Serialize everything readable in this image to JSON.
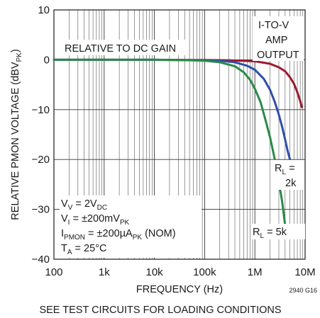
{
  "chart_data": {
    "type": "line",
    "xlabel": "FREQUENCY (Hz)",
    "ylabel": "RELATIVE PMON VOLTAGE (dBV",
    "ylabel_sub": "PK",
    "ylabel_close": ")",
    "x_scale": "log",
    "xlim": [
      100,
      10000000
    ],
    "ylim": [
      -40,
      10
    ],
    "x_ticks": [
      {
        "value": 100,
        "label": "100"
      },
      {
        "value": 1000,
        "label": "1k"
      },
      {
        "value": 10000,
        "label": "10k"
      },
      {
        "value": 100000,
        "label": "100k"
      },
      {
        "value": 1000000,
        "label": "1M"
      },
      {
        "value": 10000000,
        "label": "10M"
      }
    ],
    "y_ticks": [
      {
        "value": 10,
        "label": "10"
      },
      {
        "value": 0,
        "label": "0"
      },
      {
        "value": -10,
        "label": "−10"
      },
      {
        "value": -20,
        "label": "−20"
      },
      {
        "value": -30,
        "label": "−30"
      },
      {
        "value": -40,
        "label": "−40"
      }
    ],
    "grid": true,
    "series": [
      {
        "color": "#9b1b30",
        "points": [
          [
            100,
            0
          ],
          [
            10000,
            0
          ],
          [
            100000,
            -0.05
          ],
          [
            300000,
            -0.1
          ],
          [
            1000000,
            -0.3
          ],
          [
            2000000,
            -0.8
          ],
          [
            3000000,
            -1.5
          ],
          [
            4000000,
            -2.3
          ],
          [
            5000000,
            -3.5
          ],
          [
            6000000,
            -4.8
          ],
          [
            7000000,
            -6.5
          ],
          [
            8000000,
            -8.3
          ],
          [
            8600000,
            -9.5
          ]
        ]
      },
      {
        "color": "#2f4fa8",
        "points": [
          [
            100,
            0
          ],
          [
            10000,
            0
          ],
          [
            100000,
            -0.1
          ],
          [
            200000,
            -0.2
          ],
          [
            400000,
            -0.5
          ],
          [
            700000,
            -1.2
          ],
          [
            1000000,
            -2.0
          ],
          [
            1500000,
            -3.8
          ],
          [
            2000000,
            -6.0
          ],
          [
            2500000,
            -8.5
          ],
          [
            3000000,
            -11.0
          ],
          [
            3500000,
            -13.5
          ],
          [
            4000000,
            -16.0
          ],
          [
            4500000,
            -18.3
          ],
          [
            5000000,
            -20.0
          ]
        ]
      },
      {
        "color": "#2a8a48",
        "points": [
          [
            100,
            0
          ],
          [
            10000,
            0
          ],
          [
            50000,
            -0.1
          ],
          [
            100000,
            -0.2
          ],
          [
            200000,
            -0.5
          ],
          [
            400000,
            -1.3
          ],
          [
            600000,
            -2.5
          ],
          [
            800000,
            -4.0
          ],
          [
            1000000,
            -5.8
          ],
          [
            1300000,
            -8.5
          ],
          [
            1600000,
            -11.8
          ],
          [
            2000000,
            -15.5
          ],
          [
            2500000,
            -20.0
          ],
          [
            3000000,
            -24.5
          ],
          [
            3500000,
            -28.5
          ],
          [
            4000000,
            -33.2
          ]
        ]
      }
    ],
    "annotations": {
      "relative": "RELATIVE TO DC GAIN",
      "itov_1": "I-TO-V",
      "itov_2": "AMP",
      "itov_3": "OUTPUT",
      "rl2k_pre": "R",
      "rl2k_sub": "L",
      "rl2k_post": " =",
      "rl2k_val": "2k",
      "rl5k_pre": "R",
      "rl5k_sub": "L",
      "rl5k_post": " = 5k",
      "cond1_pre": "V",
      "cond1_sub": "V",
      "cond1_mid": " = 2V",
      "cond1_sub2": "DC",
      "cond2_pre": "V",
      "cond2_sub": "I",
      "cond2_mid": " = ±200mV",
      "cond2_sub2": "PK",
      "cond3_pre": "I",
      "cond3_sub": "PMON",
      "cond3_mid": " = ±200µA",
      "cond3_sub2": "PK",
      "cond3_post": " (NOM)",
      "cond4_pre": "T",
      "cond4_sub": "A",
      "cond4_mid": " = 25°C"
    },
    "figure_id": "2940 G16",
    "caption": "SEE TEST CIRCUITS FOR LOADING CONDITIONS"
  }
}
